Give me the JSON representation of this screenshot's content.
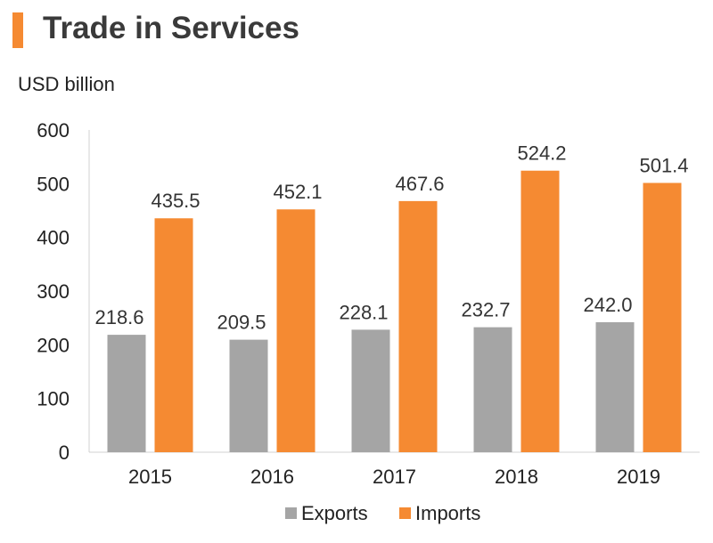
{
  "header": {
    "title": "Trade in Services"
  },
  "colors": {
    "accent": "#F58A32",
    "exports": "#A5A5A5",
    "imports": "#F58A32",
    "axis": "#D0D0D0",
    "text": "#222222"
  },
  "chart_data": {
    "type": "bar",
    "title": "Trade in Services",
    "ylabel": "USD billion",
    "xlabel": "",
    "categories": [
      "2015",
      "2016",
      "2017",
      "2018",
      "2019"
    ],
    "series": [
      {
        "name": "Exports",
        "values": [
          218.6,
          209.5,
          228.1,
          232.7,
          242.0
        ],
        "labels": [
          "218.6",
          "209.5",
          "228.1",
          "232.7",
          "242.0"
        ]
      },
      {
        "name": "Imports",
        "values": [
          435.5,
          452.1,
          467.6,
          524.2,
          501.4
        ],
        "labels": [
          "435.5",
          "452.1",
          "467.6",
          "524.2",
          "501.4"
        ]
      }
    ],
    "ylim": [
      0,
      600
    ],
    "yticks": [
      "0",
      "100",
      "200",
      "300",
      "400",
      "500",
      "600"
    ],
    "grid": false,
    "legend": "bottom"
  }
}
